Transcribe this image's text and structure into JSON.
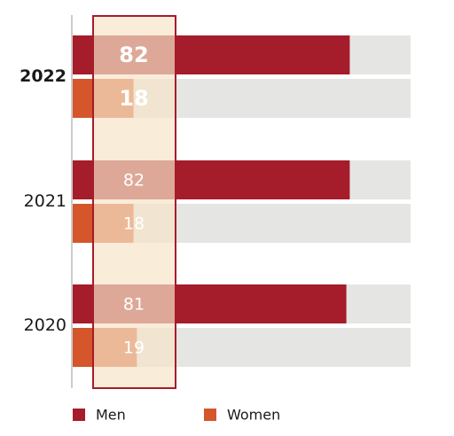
{
  "chart_data": {
    "type": "bar",
    "orientation": "horizontal",
    "categories": [
      "2022",
      "2021",
      "2020"
    ],
    "highlight_category": "2022",
    "series": [
      {
        "name": "Men",
        "values": [
          82,
          82,
          81
        ],
        "color": "#a51c2b"
      },
      {
        "name": "Women",
        "values": [
          18,
          18,
          19
        ],
        "color": "#d4562a"
      }
    ],
    "xlim": [
      0,
      100
    ],
    "track_color": "#e5e5e3",
    "highlight_band_fill": "#f7e4c8",
    "highlight_band_stroke": "#a51c2b",
    "legend_position": "bottom-left",
    "grid": false
  }
}
